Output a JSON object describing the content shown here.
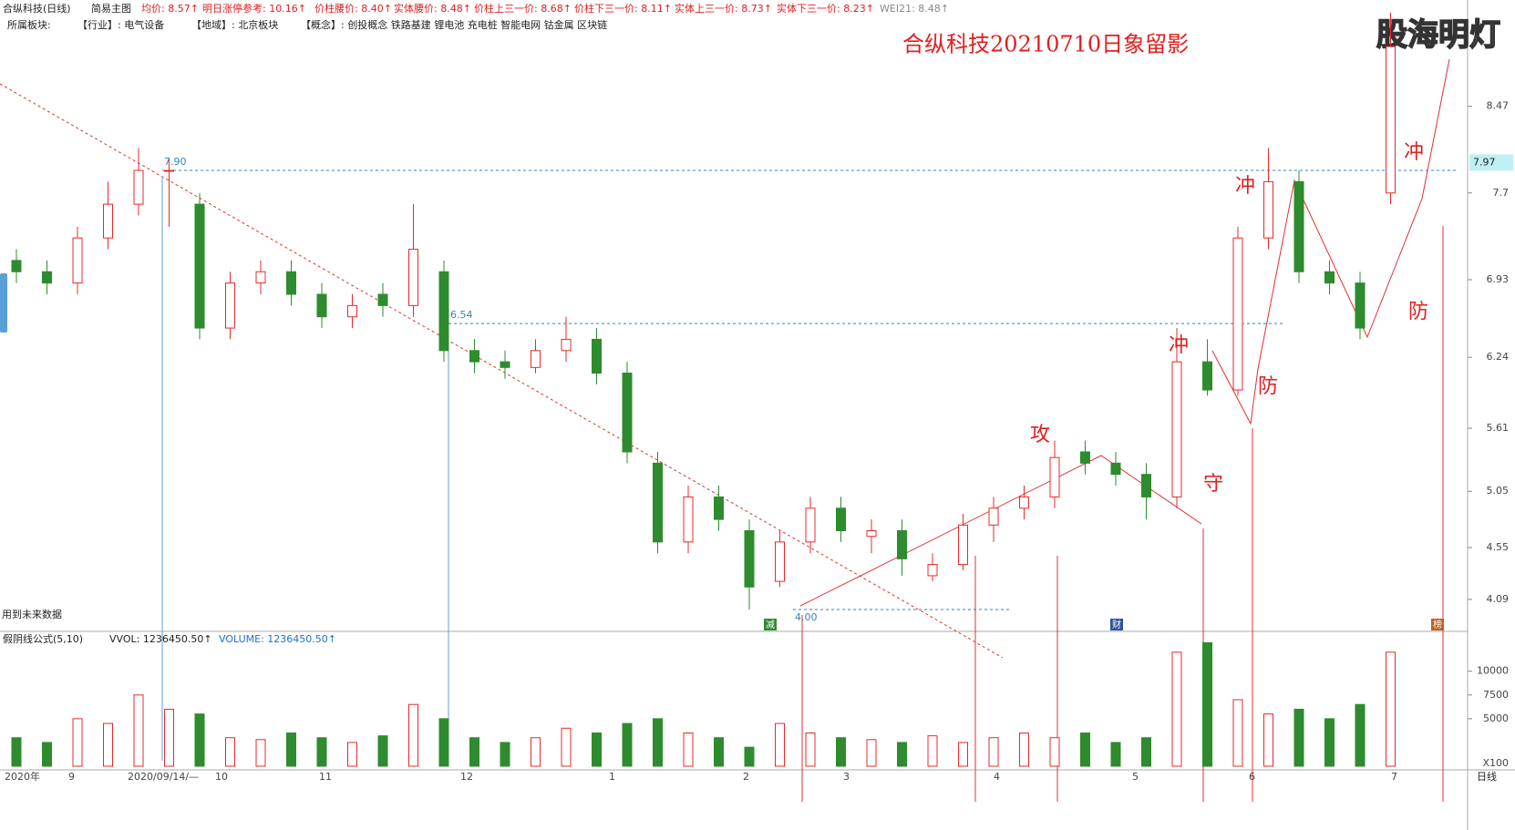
{
  "chart_data": {
    "type": "candlestick",
    "header": [
      "合纵科技(日线)",
      "简易主图",
      "均价: 8.57↑",
      "明日涨停参考: 10.16↑",
      "价柱腰价: 8.40↑",
      "实体腰价: 8.48↑",
      "价柱上三一价: 8.68↑",
      "价柱下三一价: 8.11↑",
      "实体上三一价: 8.73↑",
      "实体下三一价: 8.23↑",
      "WEI21: 8.48↑"
    ],
    "sector_row": [
      "所属板块:",
      "【行业】: 电气设备",
      "【地域】: 北京板块",
      "【概念】: 创投概念 铁路基建 锂电池 充电桩 智能电网 钴金属 区块链"
    ],
    "title": "合纵科技20210710日象留影",
    "watermark": "股海明灯",
    "note": "用到未来数据",
    "annotations": [
      "攻",
      "守",
      "冲",
      "防",
      "冲",
      "冲",
      "防"
    ],
    "markers": [
      "减",
      "财",
      "榜"
    ],
    "volume_header": [
      "假阴线公式(5,10)",
      "VVOL: 1236450.50↑",
      "VOLUME: 1236450.50↑"
    ],
    "x_labels": [
      "2020年",
      "9",
      "2020/09/14/—",
      "10",
      "11",
      "12",
      "1",
      "2",
      "3",
      "4",
      "5",
      "6",
      "7"
    ],
    "period": "日线",
    "volume_unit": "X100",
    "up_color": "#e8282c",
    "down_color": "#2e8b2e",
    "open": [
      7.1,
      7.0,
      6.9,
      7.3,
      7.6,
      7.9,
      7.6,
      6.5,
      6.9,
      7.0,
      6.8,
      6.6,
      6.8,
      6.7,
      7.0,
      6.3,
      6.2,
      6.15,
      6.3,
      6.4,
      6.1,
      5.3,
      4.6,
      5.0,
      4.7,
      4.25,
      4.6,
      4.9,
      4.65,
      4.7,
      4.3,
      4.4,
      4.75,
      4.9,
      5.0,
      5.4,
      5.3,
      5.2,
      5.0,
      6.2,
      5.95,
      7.3,
      7.8,
      7.0,
      6.9,
      7.7
    ],
    "high": [
      7.2,
      7.1,
      7.4,
      7.8,
      8.1,
      8.0,
      7.7,
      7.0,
      7.1,
      7.1,
      6.9,
      6.8,
      6.9,
      7.6,
      7.1,
      6.4,
      6.3,
      6.4,
      6.6,
      6.5,
      6.2,
      5.4,
      5.1,
      5.1,
      4.8,
      4.7,
      5.0,
      5.0,
      4.8,
      4.8,
      4.5,
      4.85,
      5.0,
      5.1,
      5.5,
      5.5,
      5.4,
      5.3,
      6.5,
      6.4,
      7.4,
      8.1,
      7.9,
      7.1,
      7.0,
      9.3
    ],
    "low": [
      6.9,
      6.8,
      6.8,
      7.2,
      7.5,
      7.4,
      6.4,
      6.4,
      6.8,
      6.7,
      6.5,
      6.5,
      6.6,
      6.6,
      6.2,
      6.1,
      6.05,
      6.1,
      6.2,
      6.0,
      5.3,
      4.5,
      4.5,
      4.7,
      4.0,
      4.2,
      4.5,
      4.6,
      4.5,
      4.3,
      4.25,
      4.35,
      4.6,
      4.8,
      4.9,
      5.2,
      5.1,
      4.8,
      4.9,
      5.9,
      5.9,
      7.2,
      6.9,
      6.8,
      6.4,
      7.6
    ],
    "close": [
      7.0,
      6.9,
      7.3,
      7.6,
      7.9,
      7.9,
      6.5,
      6.9,
      7.0,
      6.8,
      6.6,
      6.7,
      6.7,
      7.2,
      6.3,
      6.2,
      6.15,
      6.3,
      6.4,
      6.1,
      5.4,
      4.6,
      5.0,
      4.8,
      4.2,
      4.6,
      4.9,
      4.7,
      4.7,
      4.45,
      4.4,
      4.75,
      4.9,
      5.0,
      5.35,
      5.3,
      5.2,
      5.0,
      6.2,
      5.95,
      7.3,
      7.8,
      7.0,
      6.9,
      6.5,
      9.0
    ],
    "volume": [
      3000,
      2500,
      5000,
      4500,
      7500,
      6000,
      5500,
      3000,
      2800,
      3500,
      3000,
      2500,
      3200,
      6500,
      5000,
      3000,
      2500,
      3000,
      4000,
      3500,
      4500,
      5000,
      3500,
      3000,
      2000,
      4500,
      3500,
      3000,
      2800,
      2500,
      3200,
      2500,
      3000,
      3500,
      3000,
      3500,
      2500,
      3000,
      12000,
      13000,
      7000,
      5500,
      6000,
      5000,
      6500,
      12000
    ],
    "ylim": [
      3.83,
      9.09
    ],
    "yticks": [
      8.47,
      7.7,
      6.93,
      6.24,
      5.61,
      5.05,
      4.55,
      4.09
    ],
    "levels": [
      {
        "value": 7.9,
        "label": "7.90"
      },
      {
        "value": 6.54,
        "label": "6.54"
      },
      {
        "value": 4,
        "label": "4.00"
      }
    ],
    "last_price": 7.97,
    "vlim": [
      0,
      14000
    ],
    "vticks": [
      10000,
      7500,
      5000
    ]
  }
}
